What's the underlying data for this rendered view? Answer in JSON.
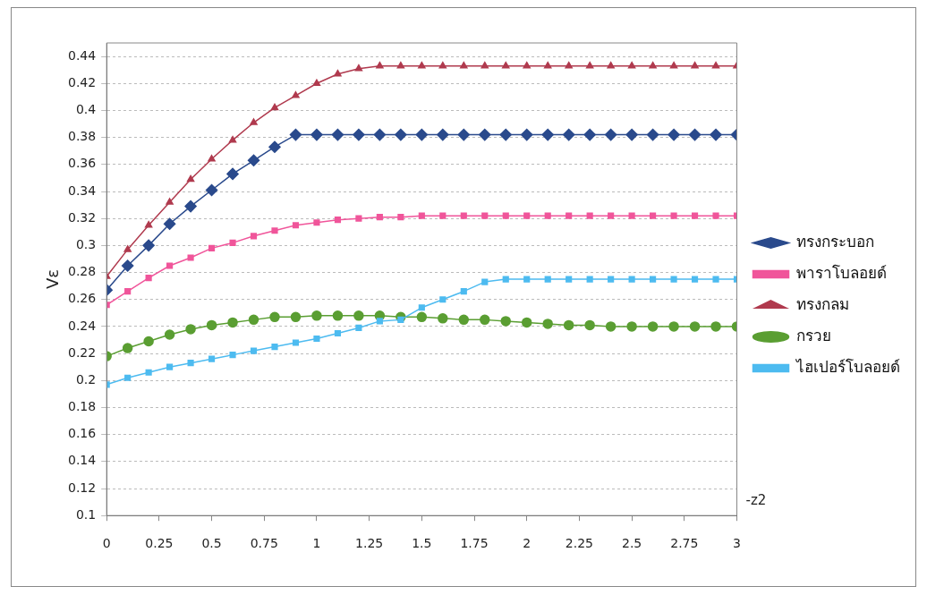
{
  "chart_data": {
    "type": "line",
    "xlabel": "-z2",
    "ylabel": "Vε",
    "x": [
      0,
      0.1,
      0.2,
      0.3,
      0.4,
      0.5,
      0.6,
      0.7,
      0.8,
      0.9,
      1,
      1.1,
      1.2,
      1.3,
      1.4,
      1.5,
      1.6,
      1.7,
      1.8,
      1.9,
      2,
      2.1,
      2.2,
      2.3,
      2.4,
      2.5,
      2.6,
      2.7,
      2.8,
      2.9,
      3
    ],
    "series": [
      {
        "name": "ทรงกระบอก",
        "color": "#2a4a8c",
        "marker": "diamond",
        "values": [
          0.267,
          0.285,
          0.3,
          0.316,
          0.329,
          0.341,
          0.353,
          0.363,
          0.373,
          0.382,
          0.382,
          0.382,
          0.382,
          0.382,
          0.382,
          0.382,
          0.382,
          0.382,
          0.382,
          0.382,
          0.382,
          0.382,
          0.382,
          0.382,
          0.382,
          0.382,
          0.382,
          0.382,
          0.382,
          0.382,
          0.382
        ]
      },
      {
        "name": "พาราโบลอยด์",
        "color": "#f0559a",
        "marker": "square",
        "values": [
          0.256,
          0.266,
          0.276,
          0.285,
          0.291,
          0.298,
          0.302,
          0.307,
          0.311,
          0.315,
          0.317,
          0.319,
          0.32,
          0.321,
          0.321,
          0.322,
          0.322,
          0.322,
          0.322,
          0.322,
          0.322,
          0.322,
          0.322,
          0.322,
          0.322,
          0.322,
          0.322,
          0.322,
          0.322,
          0.322,
          0.322
        ]
      },
      {
        "name": "ทรงกลม",
        "color": "#b03a4e",
        "marker": "triangle",
        "values": [
          0.277,
          0.297,
          0.315,
          0.332,
          0.349,
          0.364,
          0.378,
          0.391,
          0.402,
          0.411,
          0.42,
          0.427,
          0.431,
          0.433,
          0.433,
          0.433,
          0.433,
          0.433,
          0.433,
          0.433,
          0.433,
          0.433,
          0.433,
          0.433,
          0.433,
          0.433,
          0.433,
          0.433,
          0.433,
          0.433,
          0.433
        ]
      },
      {
        "name": "กรวย",
        "color": "#5a9e32",
        "marker": "circle",
        "values": [
          0.218,
          0.224,
          0.229,
          0.234,
          0.238,
          0.241,
          0.243,
          0.245,
          0.247,
          0.247,
          0.248,
          0.248,
          0.248,
          0.248,
          0.247,
          0.247,
          0.246,
          0.245,
          0.245,
          0.244,
          0.243,
          0.242,
          0.241,
          0.241,
          0.24,
          0.24,
          0.24,
          0.24,
          0.24,
          0.24,
          0.24
        ]
      },
      {
        "name": "ไฮเปอร์โบลอยด์",
        "color": "#4dbbf0",
        "marker": "square",
        "values": [
          0.197,
          0.202,
          0.206,
          0.21,
          0.213,
          0.216,
          0.219,
          0.222,
          0.225,
          0.228,
          0.231,
          0.235,
          0.239,
          0.244,
          0.245,
          0.254,
          0.26,
          0.266,
          0.273,
          0.275,
          0.275,
          0.275,
          0.275,
          0.275,
          0.275,
          0.275,
          0.275,
          0.275,
          0.275,
          0.275,
          0.275
        ]
      }
    ],
    "xlim": [
      0,
      3
    ],
    "xticks": [
      0,
      0.25,
      0.5,
      0.75,
      1,
      1.25,
      1.5,
      1.75,
      2,
      2.25,
      2.5,
      2.75,
      3
    ],
    "ylim": [
      0.1,
      0.45
    ],
    "yticks": [
      0.1,
      0.12,
      0.14,
      0.16,
      0.18,
      0.2,
      0.22,
      0.24,
      0.26,
      0.28,
      0.3,
      0.32,
      0.34,
      0.36,
      0.38,
      0.4,
      0.42,
      0.44
    ],
    "grid": "y",
    "legend": "right",
    "line_style": "solid"
  }
}
